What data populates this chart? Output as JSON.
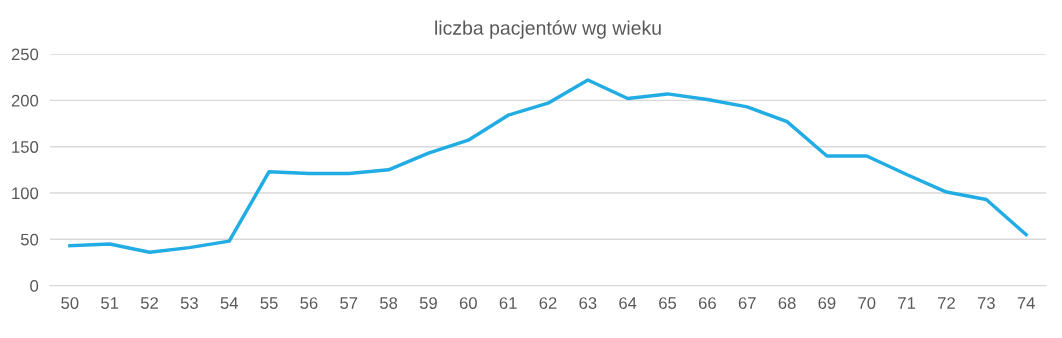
{
  "chart_data": {
    "type": "line",
    "title": "liczba pacjentów wg wieku",
    "categories": [
      "50",
      "51",
      "52",
      "53",
      "54",
      "55",
      "56",
      "57",
      "58",
      "59",
      "60",
      "61",
      "62",
      "63",
      "64",
      "65",
      "66",
      "67",
      "68",
      "69",
      "70",
      "71",
      "72",
      "73",
      "74"
    ],
    "series": [
      {
        "color": "#22ace4",
        "values": [
          43,
          45,
          36,
          41,
          48,
          123,
          121,
          121,
          125,
          143,
          157,
          184,
          197,
          222,
          202,
          207,
          201,
          193,
          177,
          140,
          140,
          120,
          101,
          93,
          55
        ]
      }
    ],
    "ylim": [
      0,
      250
    ],
    "yticks": [
      0,
      50,
      100,
      150,
      200,
      250
    ],
    "grid": "y",
    "legend": false,
    "marker": "none",
    "line_style": "solid"
  }
}
